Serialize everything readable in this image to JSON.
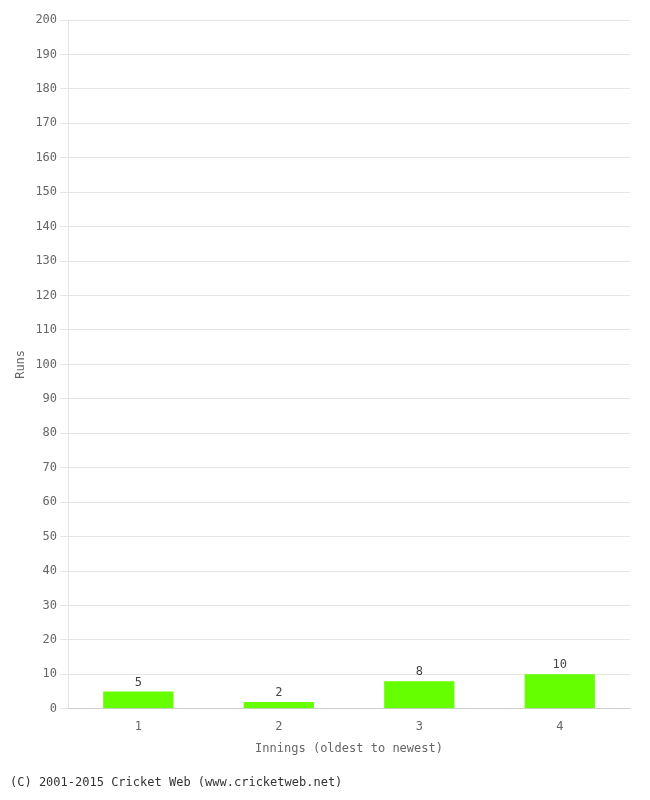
{
  "chart_data": {
    "type": "bar",
    "categories": [
      1,
      2,
      3,
      4
    ],
    "values": [
      5,
      2,
      8,
      10
    ],
    "color": "#66ff00",
    "xlabel": "Innings (oldest to newest)",
    "ylabel": "Runs",
    "ylim": [
      0,
      200
    ],
    "yticks": [
      0,
      10,
      20,
      30,
      40,
      50,
      60,
      70,
      80,
      90,
      100,
      110,
      120,
      130,
      140,
      150,
      160,
      170,
      180,
      190,
      200
    ],
    "grid": true,
    "data_labels": true,
    "footer": "(C) 2001-2015 Cricket Web (www.cricketweb.net)"
  }
}
